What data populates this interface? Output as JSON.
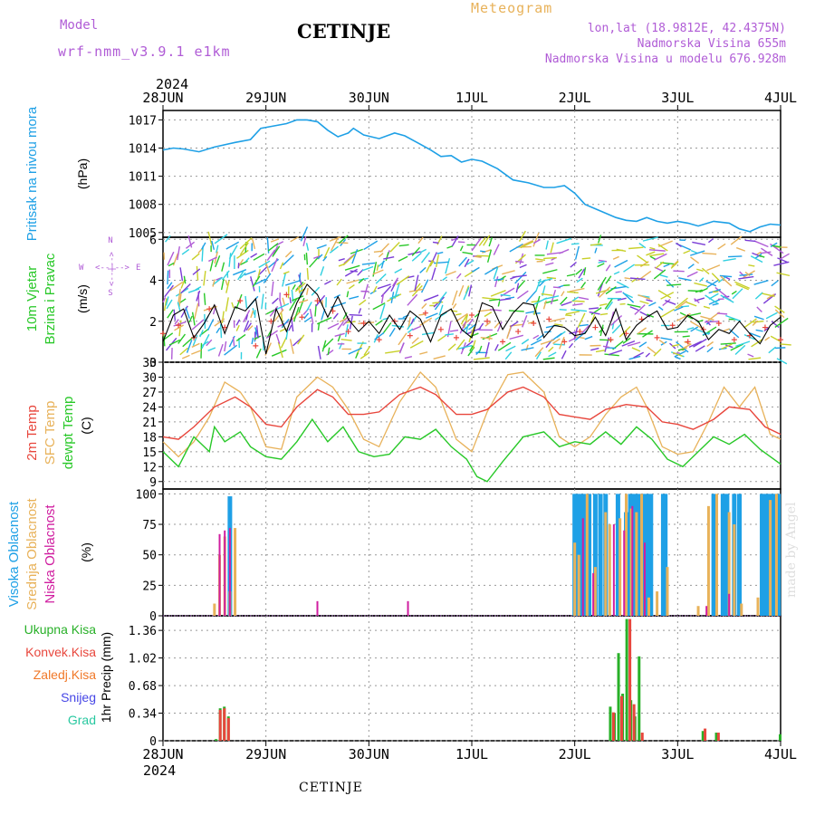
{
  "header": {
    "model_label": "Model",
    "model_version": "wrf-nmm_v3.9.1 e1km",
    "station": "CETINJE",
    "product": "Meteogram",
    "lonlat": "lon,lat (18.9812E, 42.4375N)",
    "elevation": "Nadmorska Visina 655m",
    "model_elevation": "Nadmorska Visina u modelu 676.928m",
    "year_top": "2024",
    "year_bottom": "2024",
    "footer_station": "CETINJE",
    "credit": "made by Angel"
  },
  "colors": {
    "pressure": "#1ea0e6",
    "temp2m": "#e8463c",
    "sfc": "#e8b25a",
    "dewpt": "#28c828",
    "high": "#1ea0e6",
    "mid": "#e8b25a",
    "low": "#d01ea0",
    "total": "#28b028",
    "conv": "#e8463c",
    "frz": "#f07828",
    "snow": "#4646e6",
    "grad": "#28c8a0",
    "purple": "#b05cd6",
    "wind_obs": "#000000"
  },
  "chart_data": [
    {
      "type": "line",
      "panel": "pressure",
      "xlabels": [
        "28JUN",
        "29JUN",
        "30JUN",
        "1JUL",
        "2JUL",
        "3JUL",
        "4JUL"
      ],
      "ylabel_left": "Pritisak na nivou mora",
      "ylabel_unit": "(hPa)",
      "yticks": [
        1005,
        1008,
        1011,
        1014,
        1017
      ],
      "ylim": [
        1004.5,
        1018
      ],
      "series": [
        {
          "x": [
            0,
            0.1,
            0.2,
            0.35,
            0.5,
            0.7,
            0.85,
            0.95,
            1.05,
            1.2,
            1.3,
            1.4,
            1.5,
            1.6,
            1.7,
            1.8,
            1.85,
            1.95,
            2.1,
            2.25,
            2.35,
            2.5,
            2.6,
            2.7,
            2.8,
            2.9,
            3.0,
            3.1,
            3.25,
            3.4,
            3.55,
            3.7,
            3.8,
            3.9,
            4.0,
            4.1,
            4.25,
            4.4,
            4.5,
            4.6,
            4.7,
            4.8,
            4.9,
            5.0,
            5.1,
            5.2,
            5.35,
            5.5,
            5.6,
            5.7,
            5.8,
            5.9,
            6.0
          ],
          "y": [
            1013.8,
            1014.0,
            1013.9,
            1013.6,
            1014.1,
            1014.6,
            1014.9,
            1016.1,
            1016.3,
            1016.6,
            1017.0,
            1017.0,
            1016.8,
            1015.9,
            1015.2,
            1015.6,
            1016.1,
            1015.4,
            1015.0,
            1015.6,
            1015.3,
            1014.4,
            1013.8,
            1013.1,
            1013.2,
            1012.5,
            1012.8,
            1012.6,
            1011.8,
            1010.6,
            1010.3,
            1009.8,
            1009.8,
            1010.0,
            1009.2,
            1008.0,
            1007.3,
            1006.6,
            1006.3,
            1006.2,
            1006.6,
            1006.2,
            1006.0,
            1006.2,
            1006.0,
            1005.7,
            1006.2,
            1006.0,
            1005.4,
            1005.1,
            1005.6,
            1005.9,
            1005.8
          ]
        }
      ]
    },
    {
      "type": "line",
      "panel": "wind",
      "ylabel_a": "10m Vjetar",
      "ylabel_b": "Brzina i Pravac",
      "ylabel_unit": "(m/s)",
      "compass_n": "N",
      "compass_s": "S",
      "compass_w": "W",
      "compass_e": "E",
      "compass_h": "<--|-->",
      "compass_v": "<--|-->",
      "yticks": [
        0,
        2,
        4,
        6
      ],
      "ylim": [
        0,
        6.1
      ],
      "series": [
        {
          "name": "speed",
          "x": [
            0,
            0.1,
            0.2,
            0.3,
            0.4,
            0.5,
            0.6,
            0.7,
            0.8,
            0.9,
            1.0,
            1.1,
            1.2,
            1.3,
            1.4,
            1.5,
            1.6,
            1.7,
            1.8,
            1.9,
            2.0,
            2.1,
            2.2,
            2.3,
            2.4,
            2.5,
            2.6,
            2.7,
            2.8,
            2.9,
            3.0,
            3.1,
            3.2,
            3.3,
            3.4,
            3.5,
            3.6,
            3.7,
            3.8,
            3.9,
            4.0,
            4.1,
            4.2,
            4.3,
            4.4,
            4.5,
            4.6,
            4.7,
            4.8,
            4.9,
            5.0,
            5.1,
            5.2,
            5.3,
            5.4,
            5.5,
            5.6,
            5.7,
            5.8,
            5.9,
            6.0
          ],
          "y": [
            1.0,
            2.3,
            2.6,
            1.2,
            1.9,
            2.8,
            1.4,
            2.7,
            2.5,
            3.1,
            0.4,
            2.6,
            1.5,
            2.9,
            3.8,
            3.3,
            2.2,
            3.2,
            2.1,
            1.5,
            2.0,
            1.4,
            2.3,
            1.6,
            2.5,
            2.1,
            1.0,
            2.3,
            2.6,
            1.6,
            1.2,
            2.9,
            2.7,
            1.6,
            2.4,
            2.9,
            2.8,
            1.2,
            1.8,
            1.7,
            1.3,
            1.4,
            2.2,
            1.3,
            2.6,
            1.1,
            1.8,
            2.2,
            2.5,
            1.6,
            1.7,
            2.3,
            2.0,
            1.1,
            1.6,
            1.4,
            2.0,
            1.4,
            0.9,
            1.8,
            2.2
          ]
        },
        {
          "name": "gust",
          "x": [
            0,
            0.15,
            0.3,
            0.45,
            0.6,
            0.75,
            0.9,
            1.05,
            1.2,
            1.35,
            1.5,
            1.65,
            1.8,
            1.95,
            2.1,
            2.25,
            2.4,
            2.55,
            2.7,
            2.85,
            3.0,
            3.15,
            3.3,
            3.45,
            3.6,
            3.75,
            3.9,
            4.05,
            4.2,
            4.35,
            4.5,
            4.65,
            4.8,
            4.95,
            5.1,
            5.25,
            5.4,
            5.55,
            5.7,
            5.85,
            6.0
          ],
          "y": [
            1.4,
            1.8,
            1.2,
            2.6,
            1.7,
            3.0,
            0.8,
            2.0,
            3.3,
            2.2,
            3.0,
            2.5,
            1.5,
            1.9,
            1.1,
            2.0,
            1.3,
            2.4,
            1.6,
            1.2,
            2.3,
            2.0,
            1.0,
            1.5,
            1.9,
            2.1,
            1.0,
            1.5,
            1.7,
            1.1,
            1.4,
            2.1,
            1.2,
            1.8,
            1.0,
            1.6,
            1.9,
            1.1,
            1.3,
            1.7,
            1.1
          ]
        }
      ]
    },
    {
      "type": "line",
      "panel": "temperature",
      "ylabel_a": "2m Temp",
      "ylabel_b": "SFC Temp",
      "ylabel_c": "dewpt Temp",
      "ylabel_unit": "(C)",
      "yticks": [
        9,
        12,
        15,
        18,
        21,
        24,
        27,
        30,
        33
      ],
      "ylim": [
        7.5,
        33
      ],
      "series": [
        {
          "name": "2m Temp",
          "x": [
            0,
            0.15,
            0.3,
            0.5,
            0.7,
            0.85,
            1.0,
            1.15,
            1.3,
            1.5,
            1.65,
            1.8,
            1.95,
            2.1,
            2.3,
            2.5,
            2.65,
            2.85,
            3.0,
            3.15,
            3.35,
            3.5,
            3.7,
            3.85,
            4.0,
            4.15,
            4.3,
            4.5,
            4.7,
            4.85,
            5.0,
            5.15,
            5.35,
            5.5,
            5.7,
            5.85,
            6.0
          ],
          "y": [
            18.0,
            17.5,
            20.0,
            24.0,
            26.0,
            24.0,
            20.5,
            20.0,
            24.0,
            27.5,
            26.0,
            22.5,
            22.5,
            23.0,
            26.5,
            28.0,
            26.5,
            22.5,
            22.5,
            23.5,
            27.0,
            28.0,
            26.0,
            22.5,
            22.0,
            21.5,
            23.5,
            24.5,
            24.0,
            21.0,
            20.5,
            19.5,
            21.5,
            24.0,
            23.5,
            20.0,
            18.5
          ]
        },
        {
          "name": "SFC Temp",
          "x": [
            0,
            0.15,
            0.3,
            0.45,
            0.6,
            0.75,
            0.85,
            1.0,
            1.15,
            1.3,
            1.5,
            1.65,
            1.8,
            1.95,
            2.1,
            2.3,
            2.5,
            2.65,
            2.85,
            3.0,
            3.15,
            3.35,
            3.5,
            3.7,
            3.85,
            4.0,
            4.15,
            4.3,
            4.45,
            4.6,
            4.7,
            4.85,
            5.0,
            5.15,
            5.3,
            5.45,
            5.6,
            5.75,
            5.9,
            6.0
          ],
          "y": [
            17.0,
            14.0,
            17.0,
            22.0,
            29.0,
            27.0,
            24.0,
            16.0,
            15.5,
            26.0,
            30.0,
            28.0,
            23.5,
            17.5,
            16.0,
            25.0,
            31.0,
            28.0,
            17.5,
            15.0,
            23.0,
            30.5,
            31.0,
            27.0,
            18.0,
            16.0,
            18.0,
            22.5,
            26.0,
            28.0,
            24.0,
            16.0,
            14.5,
            15.0,
            21.0,
            28.0,
            24.0,
            28.0,
            18.5,
            17.5
          ]
        },
        {
          "name": "dewpt Temp",
          "x": [
            0,
            0.15,
            0.3,
            0.45,
            0.5,
            0.6,
            0.75,
            0.85,
            1.0,
            1.15,
            1.3,
            1.45,
            1.6,
            1.75,
            1.9,
            2.05,
            2.2,
            2.35,
            2.5,
            2.65,
            2.8,
            2.95,
            3.05,
            3.15,
            3.3,
            3.5,
            3.7,
            3.85,
            4.0,
            4.15,
            4.3,
            4.45,
            4.6,
            4.75,
            4.9,
            5.05,
            5.2,
            5.35,
            5.5,
            5.65,
            5.8,
            6.0
          ],
          "y": [
            15.0,
            12.0,
            18.0,
            15.0,
            20.0,
            17.0,
            19.0,
            16.0,
            14.0,
            13.5,
            17.0,
            21.5,
            17.0,
            20.0,
            15.0,
            14.0,
            14.5,
            18.0,
            17.5,
            19.5,
            16.0,
            13.5,
            10.0,
            9.0,
            13.0,
            18.0,
            19.0,
            16.0,
            17.0,
            16.5,
            19.0,
            16.5,
            20.0,
            17.5,
            13.5,
            12.0,
            15.0,
            18.0,
            16.5,
            18.5,
            15.5,
            12.5
          ]
        }
      ]
    },
    {
      "type": "bar",
      "panel": "clouds",
      "ylabel_a": "Visoka Oblacnost",
      "ylabel_b": "Srednja Oblacnost",
      "ylabel_c": "Niska Oblacnost",
      "ylabel_unit": "(%)",
      "yticks": [
        0,
        25,
        50,
        75,
        100
      ],
      "ylim": [
        0,
        104
      ],
      "series": [
        {
          "name": "high",
          "x": [
            0.65,
            4.0,
            4.02,
            4.06,
            4.1,
            4.14,
            4.2,
            4.25,
            4.3,
            4.42,
            4.5,
            4.54,
            4.58,
            4.62,
            4.66,
            4.7,
            4.74,
            4.86,
            4.88,
            5.35,
            5.44,
            5.48,
            5.55,
            5.6,
            5.82,
            5.86,
            5.9,
            5.94,
            5.98
          ],
          "y": [
            98,
            100,
            100,
            100,
            100,
            100,
            100,
            100,
            100,
            100,
            85,
            100,
            100,
            100,
            100,
            100,
            100,
            100,
            100,
            100,
            100,
            100,
            100,
            100,
            100,
            100,
            100,
            100,
            100
          ]
        },
        {
          "name": "mid",
          "x": [
            0.5,
            0.55,
            0.6,
            0.65,
            0.7,
            4.0,
            4.04,
            4.12,
            4.2,
            4.3,
            4.34,
            4.44,
            4.5,
            4.55,
            4.6,
            4.65,
            4.72,
            4.8,
            4.9,
            5.2,
            5.3,
            5.38,
            5.5,
            5.55,
            5.62,
            5.78,
            5.9,
            5.96
          ],
          "y": [
            10,
            50,
            65,
            20,
            72,
            60,
            50,
            100,
            40,
            85,
            75,
            80,
            100,
            88,
            85,
            100,
            15,
            20,
            40,
            8,
            90,
            100,
            85,
            75,
            10,
            15,
            95,
            100
          ]
        },
        {
          "name": "low",
          "x": [
            0.55,
            0.6,
            0.65,
            1.5,
            2.38,
            4.08,
            4.18,
            4.38,
            4.48,
            4.56,
            4.68,
            5.28,
            5.5
          ],
          "y": [
            67,
            70,
            72,
            12,
            12,
            80,
            35,
            75,
            70,
            90,
            60,
            8,
            18
          ]
        }
      ]
    },
    {
      "type": "bar",
      "panel": "precip",
      "ylabel_a": "1hr Precip",
      "ylabel_unit": "(mm)",
      "legend": [
        "Ukupna Kisa",
        "Konvek.Kisa",
        "Zaledj.Kisa",
        "Snijeg",
        "Grad"
      ],
      "yticks": [
        0,
        0.34,
        0.68,
        1.02,
        1.36
      ],
      "yticklabels": [
        "0",
        "0.34",
        "0.68",
        "1.02",
        "1.36"
      ],
      "ylim": [
        0,
        1.54
      ],
      "series": [
        {
          "name": "Ukupna Kisa",
          "x": [
            0.52,
            0.56,
            0.6,
            0.64,
            4.35,
            4.39,
            4.43,
            4.47,
            4.51,
            4.55,
            4.59,
            4.63,
            5.25,
            5.38,
            6.0
          ],
          "y": [
            0.02,
            0.4,
            0.42,
            0.3,
            0.42,
            0.34,
            1.08,
            0.58,
            1.5,
            0.5,
            0.3,
            1.04,
            0.12,
            0.1,
            0.08
          ]
        },
        {
          "name": "Konvek.Kisa",
          "x": [
            0.55,
            0.59,
            0.63,
            4.37,
            4.45,
            4.53,
            4.57,
            4.65,
            5.26,
            5.39
          ],
          "y": [
            0.38,
            0.4,
            0.28,
            0.35,
            0.55,
            1.5,
            0.45,
            0.1,
            0.15,
            0.1
          ]
        }
      ]
    }
  ],
  "axis": {
    "x_ticks": [
      "28JUN",
      "29JUN",
      "30JUN",
      "1JUL",
      "2JUL",
      "3JUL",
      "4JUL"
    ]
  }
}
